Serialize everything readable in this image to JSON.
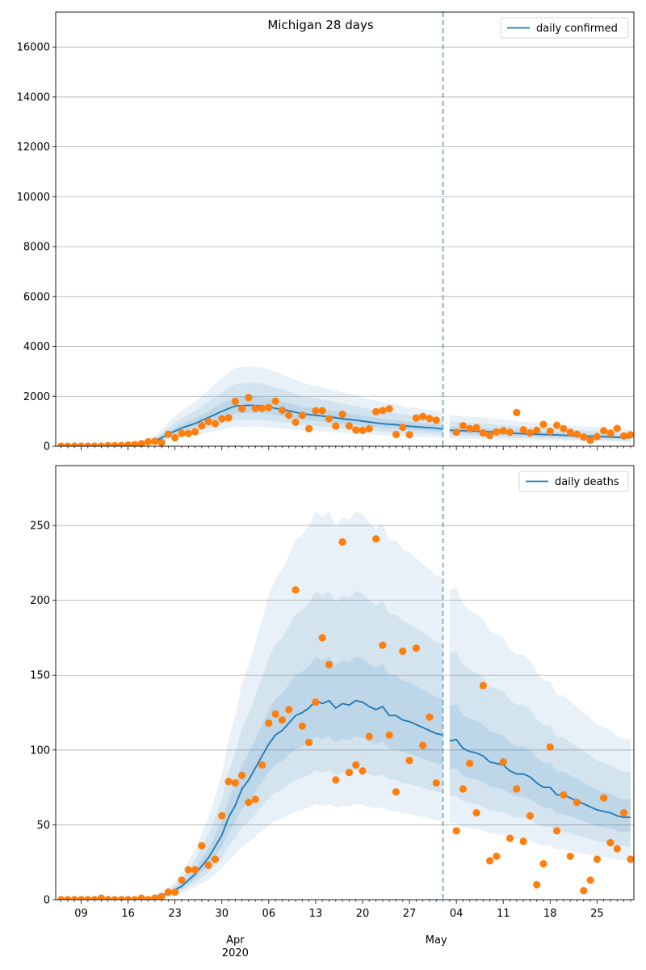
{
  "figure": {
    "title": "Michigan 28 days",
    "colors": {
      "line": "#1f77b4",
      "observed": "#ff7f0e",
      "band": "#1f77b4",
      "vline": "#6a9fc1",
      "grid": "#b0b0b0"
    },
    "x_tick_labels": [
      "09",
      "16",
      "23",
      "30",
      "06",
      "13",
      "20",
      "27",
      "04",
      "11",
      "18",
      "25"
    ],
    "x_tick_days": [
      9,
      16,
      23,
      30,
      37,
      44,
      51,
      58,
      65,
      72,
      79,
      86
    ],
    "x_month_labels": [
      {
        "label": "Apr",
        "day": 32
      },
      {
        "label": "May",
        "day": 62
      }
    ],
    "x_year_label": "2020",
    "x_domain": [
      5.2,
      91.5
    ],
    "forecast_start_day": 63,
    "x_day_origin": "2020-03-00"
  },
  "chart_data": [
    {
      "type": "line",
      "legend": "daily confirmed",
      "legend_position": "upper right",
      "grid": "y",
      "ylim": [
        0,
        17400
      ],
      "y_ticks": [
        0,
        2000,
        4000,
        6000,
        8000,
        10000,
        12000,
        14000,
        16000
      ],
      "x": [
        6,
        7,
        8,
        9,
        10,
        11,
        12,
        13,
        14,
        15,
        16,
        17,
        18,
        19,
        20,
        21,
        22,
        23,
        24,
        25,
        26,
        27,
        28,
        29,
        30,
        31,
        32,
        33,
        34,
        35,
        36,
        37,
        38,
        39,
        40,
        41,
        42,
        43,
        44,
        45,
        46,
        47,
        48,
        49,
        50,
        51,
        52,
        53,
        54,
        55,
        56,
        57,
        58,
        59,
        60,
        61,
        62,
        63,
        64,
        65,
        66,
        67,
        68,
        69,
        70,
        71,
        72,
        73,
        74,
        75,
        76,
        77,
        78,
        79,
        80,
        81,
        82,
        83,
        84,
        85,
        86,
        87,
        88,
        89,
        90,
        91
      ],
      "observed": [
        0,
        0,
        0,
        0,
        0,
        0,
        0,
        20,
        20,
        30,
        50,
        60,
        100,
        180,
        200,
        150,
        480,
        340,
        520,
        510,
        580,
        820,
        990,
        900,
        1100,
        1140,
        1800,
        1500,
        1950,
        1520,
        1520,
        1550,
        1810,
        1440,
        1240,
        960,
        1240,
        700,
        1420,
        1420,
        1100,
        810,
        1280,
        810,
        650,
        640,
        700,
        1380,
        1430,
        1500,
        470,
        760,
        460,
        1130,
        1190,
        1110,
        1040,
        null,
        null,
        560,
        820,
        700,
        740,
        530,
        430,
        570,
        620,
        560,
        1350,
        660,
        530,
        640,
        870,
        600,
        840,
        700,
        560,
        480,
        370,
        240,
        380,
        620,
        520,
        710,
        410,
        460
      ],
      "series": [
        {
          "name": "daily confirmed",
          "x": [
            6,
            12,
            16,
            18,
            20,
            22,
            24,
            26,
            28,
            30,
            32,
            34,
            36,
            38,
            40,
            42,
            44,
            46,
            48,
            50,
            52,
            54,
            56,
            58,
            60,
            62,
            63
          ],
          "values": [
            0,
            0,
            20,
            100,
            200,
            480,
            730,
            910,
            1150,
            1400,
            1610,
            1640,
            1620,
            1520,
            1420,
            1300,
            1240,
            1180,
            1100,
            1040,
            970,
            900,
            860,
            800,
            760,
            720,
            680
          ]
        },
        {
          "name": "daily confirmed",
          "x": [
            64,
            66,
            68,
            70,
            72,
            74,
            76,
            78,
            80,
            82,
            84,
            86,
            88,
            90,
            91
          ],
          "values": [
            640,
            620,
            600,
            580,
            540,
            510,
            490,
            470,
            450,
            430,
            410,
            390,
            370,
            350,
            340
          ]
        }
      ]
    },
    {
      "type": "line",
      "legend": "daily deaths",
      "legend_position": "upper right",
      "grid": "y",
      "ylim": [
        0,
        290
      ],
      "y_ticks": [
        0,
        50,
        100,
        150,
        200,
        250
      ],
      "x": [
        6,
        7,
        8,
        9,
        10,
        11,
        12,
        13,
        14,
        15,
        16,
        17,
        18,
        19,
        20,
        21,
        22,
        23,
        24,
        25,
        26,
        27,
        28,
        29,
        30,
        31,
        32,
        33,
        34,
        35,
        36,
        37,
        38,
        39,
        40,
        41,
        42,
        43,
        44,
        45,
        46,
        47,
        48,
        49,
        50,
        51,
        52,
        53,
        54,
        55,
        56,
        57,
        58,
        59,
        60,
        61,
        62,
        63,
        64,
        65,
        66,
        67,
        68,
        69,
        70,
        71,
        72,
        73,
        74,
        75,
        76,
        77,
        78,
        79,
        80,
        81,
        82,
        83,
        84,
        85,
        86,
        87,
        88,
        89,
        90,
        91
      ],
      "observed": [
        0,
        0,
        0,
        0,
        0,
        0,
        1,
        0,
        0,
        0,
        0,
        0,
        1,
        0,
        1,
        2,
        5,
        5,
        13,
        20,
        20,
        36,
        23,
        27,
        56,
        79,
        78,
        83,
        65,
        67,
        90,
        118,
        124,
        120,
        127,
        207,
        116,
        105,
        132,
        175,
        157,
        80,
        239,
        85,
        90,
        86,
        109,
        241,
        170,
        110,
        72,
        166,
        93,
        168,
        103,
        122,
        78,
        null,
        null,
        46,
        74,
        91,
        58,
        143,
        26,
        29,
        92,
        41,
        74,
        39,
        56,
        10,
        24,
        102,
        46,
        70,
        29,
        65,
        6,
        13,
        27,
        68,
        38,
        34,
        58,
        27
      ],
      "series": [
        {
          "name": "daily deaths",
          "x": [
            6,
            16,
            18,
            20,
            21,
            22,
            24,
            26,
            28,
            30,
            31,
            32,
            33,
            34,
            35,
            36,
            37,
            38,
            39,
            40,
            41,
            42,
            43,
            44,
            45,
            46,
            47,
            48,
            49,
            50,
            51,
            52,
            53,
            54,
            55,
            56,
            57,
            58,
            59,
            60,
            61,
            62,
            63
          ],
          "values": [
            0,
            0,
            0.5,
            1.5,
            3,
            4,
            9,
            17,
            28,
            43,
            55,
            63,
            74,
            80,
            88,
            96,
            104,
            110,
            113,
            118,
            123,
            125,
            128,
            133,
            131,
            133,
            128,
            131,
            130,
            133,
            132,
            129,
            127,
            129,
            123,
            123,
            120,
            119,
            117,
            115,
            113,
            111,
            110
          ]
        },
        {
          "name": "daily deaths",
          "x": [
            64,
            65,
            66,
            67,
            68,
            69,
            70,
            71,
            72,
            73,
            74,
            75,
            76,
            77,
            78,
            79,
            80,
            81,
            82,
            83,
            84,
            85,
            86,
            87,
            88,
            89,
            90,
            91
          ],
          "values": [
            106,
            107,
            101,
            99,
            98,
            96,
            92,
            91,
            90,
            86,
            84,
            84,
            82,
            78,
            75,
            75,
            70,
            70,
            68,
            66,
            64,
            62,
            60,
            59,
            58,
            56,
            55,
            55
          ]
        }
      ]
    }
  ]
}
